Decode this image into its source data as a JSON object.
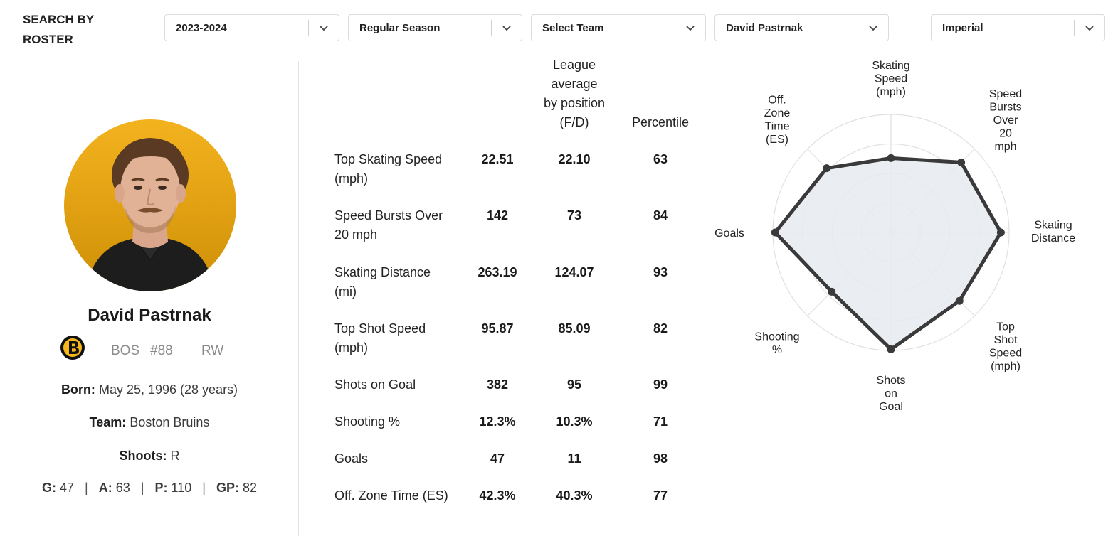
{
  "filters": {
    "search_label_line1": "SEARCH BY",
    "search_label_line2": "ROSTER",
    "season": "2023-2024",
    "season_type": "Regular Season",
    "team": "Select Team",
    "player": "David Pastrnak",
    "units": "Imperial"
  },
  "player": {
    "name": "David Pastrnak",
    "team_abbr": "BOS",
    "number": "#88",
    "position": "RW",
    "born_label": "Born:",
    "born_value": "May 25, 1996 (28 years)",
    "team_label": "Team:",
    "team_value": "Boston Bruins",
    "shoots_label": "Shoots:",
    "shoots_value": "R",
    "g_label": "G:",
    "g_value": "47",
    "a_label": "A:",
    "a_value": "63",
    "p_label": "P:",
    "p_value": "110",
    "gp_label": "GP:",
    "gp_value": "82",
    "sep": "|"
  },
  "table": {
    "headers": {
      "league_line1": "League",
      "league_line2": "average",
      "league_line3": "by position",
      "league_line4": "(F/D)",
      "percentile": "Percentile"
    },
    "rows": [
      {
        "label_line1": "Top Skating Speed",
        "label_line2": "(mph)",
        "value": "22.51",
        "league": "22.10",
        "percentile": "63"
      },
      {
        "label_line1": "Speed Bursts Over",
        "label_line2": "20 mph",
        "value": "142",
        "league": "73",
        "percentile": "84"
      },
      {
        "label_line1": "Skating Distance",
        "label_line2": "(mi)",
        "value": "263.19",
        "league": "124.07",
        "percentile": "93"
      },
      {
        "label_line1": "Top Shot Speed",
        "label_line2": "(mph)",
        "value": "95.87",
        "league": "85.09",
        "percentile": "82"
      },
      {
        "label_line1": "Shots on Goal",
        "label_line2": "",
        "value": "382",
        "league": "95",
        "percentile": "99"
      },
      {
        "label_line1": "Shooting %",
        "label_line2": "",
        "value": "12.3%",
        "league": "10.3%",
        "percentile": "71"
      },
      {
        "label_line1": "Goals",
        "label_line2": "",
        "value": "47",
        "league": "11",
        "percentile": "98"
      },
      {
        "label_line1": "Off. Zone Time (ES)",
        "label_line2": "",
        "value": "42.3%",
        "league": "40.3%",
        "percentile": "77"
      }
    ]
  },
  "radar": {
    "axes": [
      {
        "label": [
          "Skating",
          "Speed",
          "(mph)"
        ],
        "percentile": 63
      },
      {
        "label": [
          "Speed",
          "Bursts",
          "Over",
          "20",
          "mph"
        ],
        "percentile": 84
      },
      {
        "label": [
          "Skating",
          "Distance"
        ],
        "percentile": 93
      },
      {
        "label": [
          "Top",
          "Shot",
          "Speed",
          "(mph)"
        ],
        "percentile": 82
      },
      {
        "label": [
          "Shots",
          "on",
          "Goal"
        ],
        "percentile": 99
      },
      {
        "label": [
          "Shooting",
          "%"
        ],
        "percentile": 71
      },
      {
        "label": [
          "Goals"
        ],
        "percentile": 98
      },
      {
        "label": [
          "Off.",
          "Zone",
          "Time",
          "(ES)"
        ],
        "percentile": 77
      }
    ],
    "max": 100,
    "rings": 4
  },
  "colors": {
    "polygon_stroke": "#3a3a3a",
    "polygon_fill": "#e6ebf0",
    "grid": "#e0e0e0",
    "avatar_top": "#f3b31f",
    "avatar_bottom": "#cf8f06"
  },
  "icons": {
    "chevron": "chevron-down-icon",
    "team_logo": "bruins-logo-icon"
  }
}
